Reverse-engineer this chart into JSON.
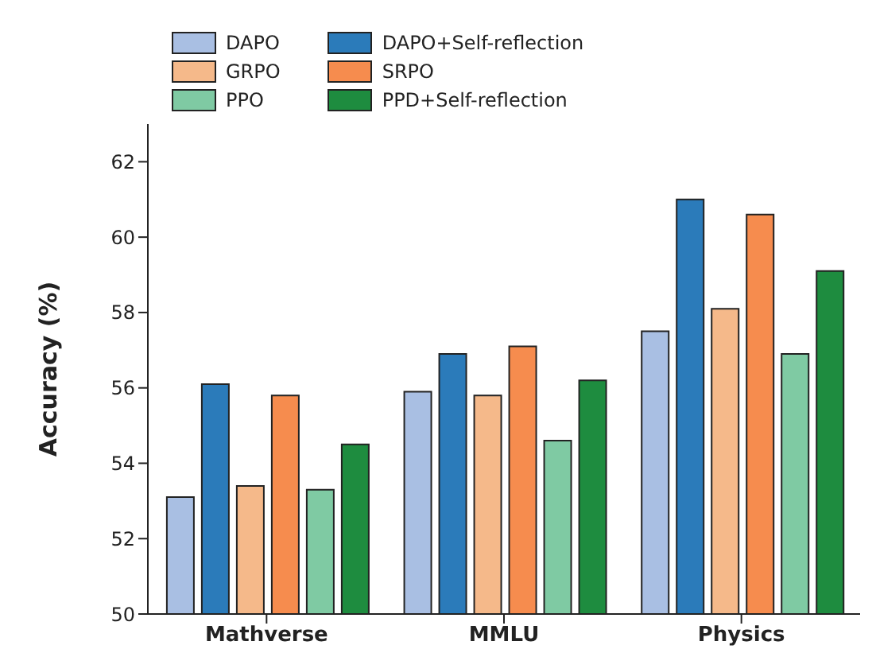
{
  "chart_data": {
    "type": "bar",
    "ylabel": "Accuracy (%)",
    "categories": [
      "Mathverse",
      "MMLU",
      "Physics"
    ],
    "series": [
      {
        "name": "DAPO",
        "color": "#a9bfe3",
        "values": [
          53.1,
          55.9,
          57.5
        ]
      },
      {
        "name": "DAPO+Self-reflection",
        "color": "#2b7bba",
        "values": [
          56.1,
          56.9,
          61.0
        ]
      },
      {
        "name": "GRPO",
        "color": "#f5b98a",
        "values": [
          53.4,
          55.8,
          58.1
        ]
      },
      {
        "name": "SRPO",
        "color": "#f68c4e",
        "values": [
          55.8,
          57.1,
          60.6
        ]
      },
      {
        "name": "PPO",
        "color": "#7fcaa3",
        "values": [
          53.3,
          54.6,
          56.9
        ]
      },
      {
        "name": "PPD+Self-reflection",
        "color": "#1e8c3f",
        "values": [
          54.5,
          56.2,
          59.1
        ]
      }
    ],
    "ylim": [
      50,
      63
    ],
    "yticks": [
      50,
      52,
      54,
      56,
      58,
      60,
      62
    ],
    "grid": false,
    "legend": "top left"
  }
}
